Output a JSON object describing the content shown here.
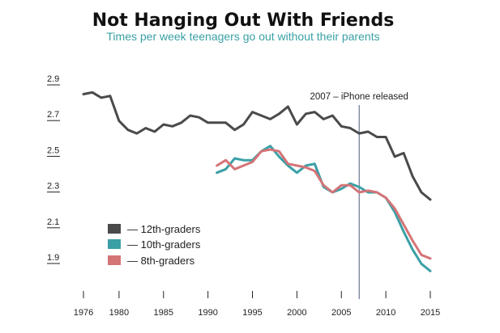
{
  "chart_data": {
    "type": "line",
    "title": "Not Hanging Out With Friends",
    "subtitle": "Times per week teenagers go out without their parents",
    "xlabel": "",
    "ylabel": "",
    "xlim": [
      1976,
      2015
    ],
    "ylim": [
      1.9,
      2.9
    ],
    "x_ticks": [
      1976,
      1980,
      1985,
      1990,
      1995,
      2000,
      2005,
      2010,
      2015
    ],
    "y_ticks": [
      1.9,
      2.1,
      2.3,
      2.5,
      2.7,
      2.9
    ],
    "x_tick_labels": [
      "1976",
      "1980",
      "1985",
      "1990",
      "1995",
      "2000",
      "2005",
      "2010",
      "2015"
    ],
    "y_tick_labels": [
      "1.9",
      "2.1",
      "2.3",
      "2.5",
      "2.7",
      "2.9"
    ],
    "grid": false,
    "legend_position": "bottom-left",
    "annotations": [
      {
        "text": "2007 – iPhone released",
        "x": 2007
      }
    ],
    "series": [
      {
        "name": "— 12th-graders",
        "color": "#4a4a4a",
        "x": [
          1976,
          1977,
          1978,
          1979,
          1980,
          1981,
          1982,
          1983,
          1984,
          1985,
          1986,
          1987,
          1988,
          1989,
          1990,
          1991,
          1992,
          1993,
          1994,
          1995,
          1996,
          1997,
          1998,
          1999,
          2000,
          2001,
          2002,
          2003,
          2004,
          2005,
          2006,
          2007,
          2008,
          2009,
          2010,
          2011,
          2012,
          2013,
          2014,
          2015
        ],
        "values": [
          2.83,
          2.84,
          2.81,
          2.82,
          2.68,
          2.63,
          2.61,
          2.64,
          2.62,
          2.66,
          2.65,
          2.67,
          2.71,
          2.7,
          2.67,
          2.67,
          2.67,
          2.63,
          2.66,
          2.73,
          2.71,
          2.69,
          2.72,
          2.76,
          2.66,
          2.72,
          2.73,
          2.69,
          2.71,
          2.65,
          2.64,
          2.61,
          2.62,
          2.59,
          2.59,
          2.48,
          2.5,
          2.37,
          2.28,
          2.24
        ]
      },
      {
        "name": "— 10th-graders",
        "color": "#3aa0a6",
        "x": [
          1991,
          1992,
          1993,
          1994,
          1995,
          1996,
          1997,
          1998,
          1999,
          2000,
          2001,
          2002,
          2003,
          2004,
          2005,
          2006,
          2007,
          2008,
          2009,
          2010,
          2011,
          2012,
          2013,
          2014,
          2015
        ],
        "values": [
          2.39,
          2.41,
          2.47,
          2.46,
          2.46,
          2.51,
          2.54,
          2.48,
          2.43,
          2.39,
          2.43,
          2.44,
          2.31,
          2.28,
          2.3,
          2.33,
          2.31,
          2.28,
          2.28,
          2.25,
          2.17,
          2.06,
          1.96,
          1.88,
          1.84
        ]
      },
      {
        "name": "— 8th-graders",
        "color": "#d47478",
        "x": [
          1991,
          1992,
          1993,
          1994,
          1995,
          1996,
          1997,
          1998,
          1999,
          2000,
          2001,
          2002,
          2003,
          2004,
          2005,
          2006,
          2007,
          2008,
          2009,
          2010,
          2011,
          2012,
          2013,
          2014,
          2015
        ],
        "values": [
          2.43,
          2.46,
          2.41,
          2.43,
          2.45,
          2.51,
          2.52,
          2.51,
          2.44,
          2.43,
          2.42,
          2.4,
          2.32,
          2.28,
          2.32,
          2.32,
          2.28,
          2.29,
          2.28,
          2.25,
          2.19,
          2.1,
          2.01,
          1.93,
          1.91
        ]
      }
    ]
  }
}
